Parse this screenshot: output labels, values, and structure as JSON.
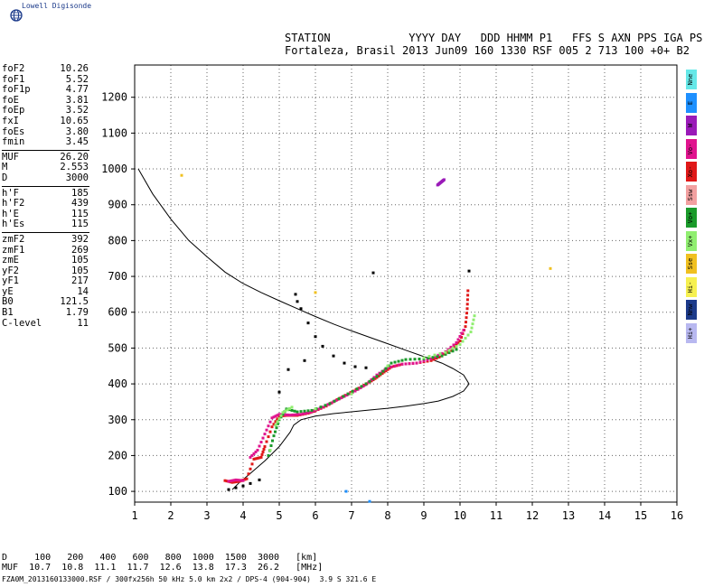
{
  "brand": {
    "name": "Lowell Digisonde",
    "icon": "globe-icon"
  },
  "header": {
    "labels": "STATION            YYYY DAY   DDD HHMM P1   FFS S AXN PPS IGA PS",
    "values": "Fortaleza, Brasil 2013 Jun09 160 1330 RSF 005 2 713 100 +0+ B2"
  },
  "params": {
    "group1": [
      {
        "k": "foF2",
        "v": "10.26"
      },
      {
        "k": "foF1",
        "v": "5.52"
      },
      {
        "k": "foF1p",
        "v": "4.77"
      },
      {
        "k": "foE",
        "v": "3.81"
      },
      {
        "k": "foEp",
        "v": "3.52"
      },
      {
        "k": "fxI",
        "v": "10.65"
      },
      {
        "k": "foEs",
        "v": "3.80"
      },
      {
        "k": "fmin",
        "v": "3.45"
      }
    ],
    "group2": [
      {
        "k": "MUF",
        "v": "26.20"
      },
      {
        "k": "M",
        "v": "2.553"
      },
      {
        "k": "D",
        "v": "3000"
      }
    ],
    "group3": [
      {
        "k": "h'F",
        "v": "185"
      },
      {
        "k": "h'F2",
        "v": "439"
      },
      {
        "k": "h'E",
        "v": "115"
      },
      {
        "k": "h'Es",
        "v": "115"
      }
    ],
    "group4": [
      {
        "k": "zmF2",
        "v": "392"
      },
      {
        "k": "zmF1",
        "v": "269"
      },
      {
        "k": "zmE",
        "v": "105"
      },
      {
        "k": "yF2",
        "v": "105"
      },
      {
        "k": "yF1",
        "v": "217"
      },
      {
        "k": "yE",
        "v": "14"
      },
      {
        "k": "B0",
        "v": "121.5"
      },
      {
        "k": "B1",
        "v": "1.79"
      },
      {
        "k": "C-level",
        "v": "11"
      }
    ]
  },
  "legend": [
    {
      "label": "Nne",
      "color": "#66e8e8"
    },
    {
      "label": "E",
      "color": "#1e90ff"
    },
    {
      "label": "W",
      "color": "#9a1ab8"
    },
    {
      "label": "Vo-",
      "color": "#e0138e"
    },
    {
      "label": "Xo-",
      "color": "#e01818"
    },
    {
      "label": "Ssw",
      "color": "#f2a0a0"
    },
    {
      "label": "Vo+",
      "color": "#1a9a2a"
    },
    {
      "label": "Vx+",
      "color": "#90ee70"
    },
    {
      "label": "Sse",
      "color": "#f0c020"
    },
    {
      "label": "Hi-",
      "color": "#f6f050"
    },
    {
      "label": "Nnw",
      "color": "#1c3a8a"
    },
    {
      "label": "Hi+",
      "color": "#b8b8f0"
    }
  ],
  "muf_table": {
    "row1": "D     100   200   400   600   800  1000  1500  3000   [km]",
    "row2": "MUF  10.7  10.8  11.1  11.7  12.6  13.8  17.3  26.2   [MHz]"
  },
  "footer": "FZA0M_2013160133000.RSF / 300fx256h 50 kHz 5.0 km 2x2 / DPS-4 (904-904)  3.9 S 321.6 E",
  "chart_data": {
    "type": "scatter",
    "xlim": [
      1,
      16
    ],
    "ylim": [
      70,
      1290
    ],
    "x_ticks": [
      1,
      2,
      3,
      4,
      5,
      6,
      7,
      8,
      9,
      10,
      11,
      12,
      13,
      14,
      15,
      16
    ],
    "y_ticks": [
      100,
      200,
      300,
      400,
      500,
      600,
      700,
      800,
      900,
      1000,
      1100,
      1200
    ],
    "grid": true,
    "profile": {
      "x": [
        1.1,
        1.5,
        2.0,
        2.5,
        3.0,
        3.5,
        4.0,
        4.5,
        5.0,
        5.5,
        6.0,
        6.5,
        7.0,
        7.5,
        8.0,
        8.5,
        9.0,
        9.5,
        9.8,
        10.1,
        10.25,
        10.1,
        9.8,
        9.4,
        9.0,
        8.5,
        8.0,
        7.5,
        7.0,
        6.5,
        6.0,
        5.6,
        5.4,
        5.3,
        5.0,
        4.6,
        4.2,
        3.9,
        3.7
      ],
      "y": [
        1000,
        930,
        860,
        800,
        755,
        712,
        680,
        655,
        632,
        610,
        588,
        567,
        548,
        530,
        512,
        494,
        476,
        458,
        443,
        425,
        400,
        380,
        365,
        352,
        345,
        338,
        332,
        327,
        322,
        317,
        310,
        300,
        285,
        265,
        225,
        185,
        150,
        125,
        105
      ]
    },
    "series": [
      {
        "color": "#e01818",
        "x": [
          3.5,
          3.7,
          3.9,
          4.1,
          4.3,
          4.5,
          4.6,
          4.8,
          5.0,
          5.2,
          5.5,
          5.8,
          6.0,
          6.3,
          6.6,
          6.9,
          7.2,
          7.5,
          7.7,
          7.9,
          8.1,
          8.4,
          8.8,
          9.2,
          9.5,
          9.8,
          10.0,
          10.15,
          10.2,
          10.22
        ],
        "y": [
          130,
          125,
          128,
          135,
          190,
          195,
          225,
          280,
          310,
          312,
          312,
          318,
          325,
          338,
          356,
          372,
          388,
          405,
          418,
          433,
          447,
          455,
          458,
          465,
          478,
          498,
          520,
          560,
          610,
          660
        ]
      },
      {
        "color": "#e0138e",
        "x": [
          3.6,
          3.8,
          4.0,
          4.2,
          4.4,
          4.6,
          4.8,
          5.0,
          5.3,
          5.6,
          5.9,
          6.2,
          6.5,
          6.8,
          7.1,
          7.4,
          7.7,
          8.0,
          8.4,
          8.8,
          9.2,
          9.6,
          9.9,
          10.1
        ],
        "y": [
          128,
          132,
          130,
          195,
          215,
          260,
          305,
          315,
          313,
          315,
          322,
          335,
          350,
          365,
          380,
          398,
          425,
          445,
          455,
          458,
          470,
          490,
          515,
          550
        ]
      },
      {
        "color": "#1a9a2a",
        "x": [
          4.7,
          4.85,
          5.0,
          5.2,
          5.5,
          5.9,
          6.4,
          6.9,
          7.4,
          7.8,
          8.1,
          8.5,
          9.0,
          9.5,
          9.9
        ],
        "y": [
          200,
          255,
          300,
          330,
          322,
          326,
          345,
          372,
          400,
          428,
          458,
          468,
          470,
          478,
          496
        ]
      },
      {
        "color": "#90ee70",
        "x": [
          4.75,
          4.9,
          5.1,
          5.35,
          6.0,
          7.0,
          8.0,
          9.0,
          9.6,
          10.0,
          10.3,
          10.4
        ],
        "y": [
          215,
          285,
          320,
          335,
          330,
          372,
          450,
          473,
          488,
          510,
          545,
          590
        ]
      },
      {
        "color": "#9a1ab8",
        "x": [
          9.38,
          9.44,
          9.5,
          9.56
        ],
        "y": [
          955,
          960,
          965,
          970
        ]
      },
      {
        "color": "#000000",
        "x": [
          3.6,
          3.8,
          4.0,
          4.2,
          4.45,
          5.0,
          5.45,
          5.5,
          5.6,
          5.8,
          6.0,
          6.2,
          6.5,
          6.8,
          7.1,
          7.4,
          5.7,
          5.25,
          7.6,
          10.25
        ],
        "y": [
          105,
          110,
          115,
          122,
          132,
          377,
          650,
          630,
          610,
          570,
          532,
          505,
          478,
          458,
          448,
          445,
          465,
          440,
          710,
          715
        ]
      },
      {
        "color": "#f0c020",
        "x": [
          2.3,
          12.5,
          6.0
        ],
        "y": [
          982,
          722,
          655
        ]
      },
      {
        "color": "#1e90ff",
        "x": [
          6.85,
          7.5
        ],
        "y": [
          100,
          72
        ]
      }
    ]
  }
}
